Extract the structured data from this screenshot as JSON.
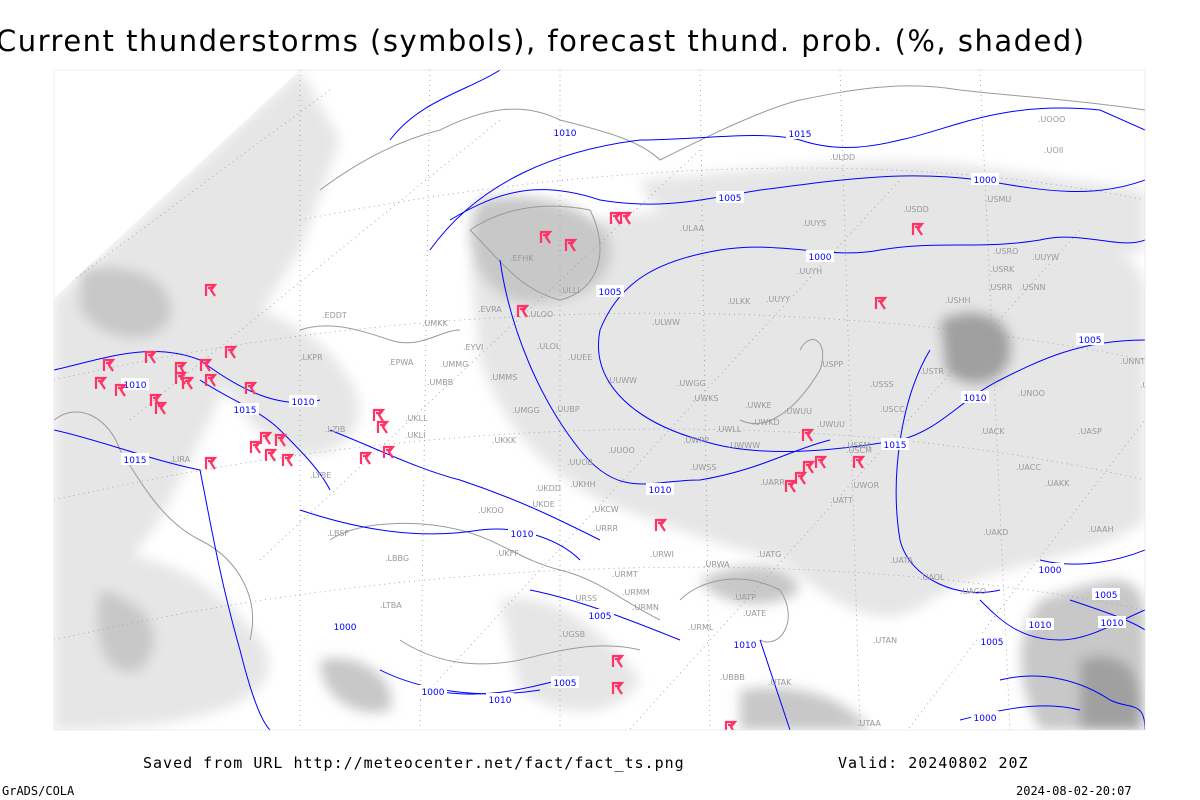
{
  "title": "Current thunderstorms (symbols), forecast thund. prob. (%, shaded)",
  "footer": {
    "saved_from": "Saved from URL http://meteocenter.net/fact/fact_ts.png",
    "valid": "Valid: 20240802 20Z",
    "software": "GrADS/COLA",
    "timestamp": "2024-08-02-20:07"
  },
  "colors": {
    "isobar": "#0000ff",
    "storm_symbol": "#ff3366",
    "station_label": "#999999",
    "shade_light": "#e6e6e6",
    "shade_mid": "#c8c8c8",
    "shade_dark": "#a0a0a0"
  },
  "legend_icons": {
    "storm": "thunderstorm-symbol-icon"
  },
  "isobar_labels": [
    "1010",
    "1015",
    "1010",
    "1005",
    "1000",
    "1000",
    "1005",
    "1010",
    "1015",
    "1010",
    "1005",
    "1010",
    "1015",
    "1010",
    "1005",
    "1000",
    "1000",
    "1005",
    "1010",
    "1010",
    "1000",
    "1005",
    "1010",
    "1005",
    "1000",
    "1010",
    "1015"
  ],
  "stations": [
    "ULAA",
    "ULOL",
    "UUEE",
    "UUWW",
    "UMMS",
    "UMGG",
    "UUBP",
    "UKKK",
    "UUOB",
    "UUOO",
    "UWPP",
    "UWSS",
    "UWKE",
    "UWKD",
    "UWWW",
    "UWLL",
    "UWUU",
    "USSS",
    "USCC",
    "USTR",
    "USPP",
    "UUYY",
    "ULKK",
    "ULWW",
    "UUYH",
    "UUYS",
    "USDD",
    "USMU",
    "USRO",
    "USRR",
    "USNN",
    "USHH",
    "ULDD",
    "UOOO",
    "UOII",
    "UNNT",
    "UNBB",
    "UNOO",
    "UACK",
    "UASP",
    "UACC",
    "UAKK",
    "UAKD",
    "UAAH",
    "UATT",
    "UARR",
    "UWOR",
    "UATG",
    "UATA",
    "UAOL",
    "UAGO",
    "UTAA",
    "UTAK",
    "UTAN",
    "UBBB",
    "UATE",
    "UATP",
    "URWI",
    "URWA",
    "URMT",
    "URMM",
    "URMN",
    "URML",
    "URSS",
    "UGSB",
    "URRR",
    "UKCW",
    "UKDE",
    "UKDD",
    "UKHH",
    "UKFF",
    "UKOO",
    "UKLL",
    "UKLI",
    "ULLI",
    "ULOO",
    "EFHK",
    "EVRA",
    "EYVI",
    "UMMG",
    "UMBB",
    "UMKK",
    "EPWA",
    "EDDT",
    "LKPR",
    "LZIB",
    "LYBE",
    "LBSF",
    "LBBG",
    "LTBA",
    "LIRA",
    "USSM",
    "USRK",
    "UUYW",
    "UWGG",
    "UWKS",
    "UWUU",
    "USCM"
  ],
  "storm_count": 41
}
